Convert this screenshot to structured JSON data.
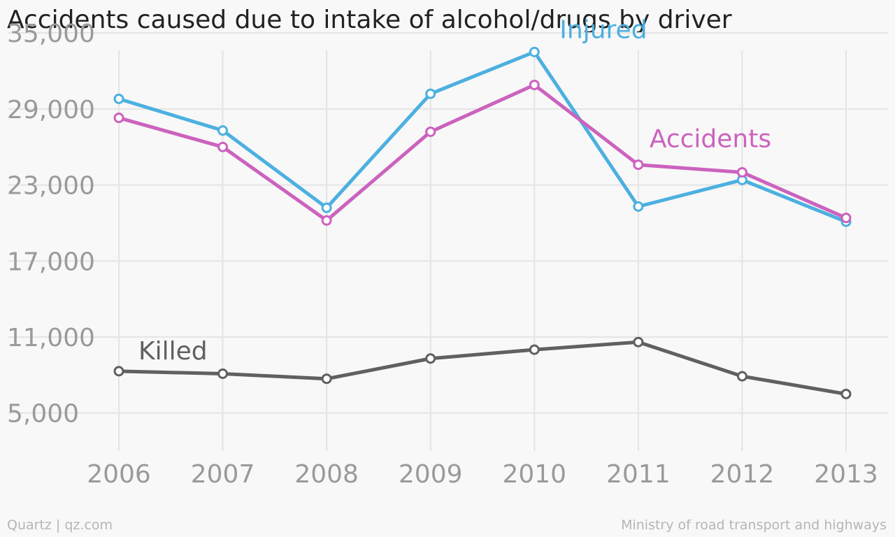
{
  "chart_data": {
    "type": "line",
    "title": "Accidents caused due to intake of alcohol/drugs by driver",
    "xlabel": "",
    "ylabel": "",
    "categories": [
      "2006",
      "2007",
      "2008",
      "2009",
      "2010",
      "2011",
      "2012",
      "2013"
    ],
    "ylim": [
      2000,
      36500
    ],
    "yticks": [
      5000,
      11000,
      17000,
      23000,
      29000,
      35000
    ],
    "ytick_labels": [
      "5,000",
      "11,000",
      "17,000",
      "23,000",
      "29,000",
      "35,000"
    ],
    "grid": true,
    "series": [
      {
        "name": "Injured",
        "color": "#4cb0e0",
        "values": [
          29800,
          27300,
          21200,
          30200,
          33500,
          21300,
          23400,
          20100
        ]
      },
      {
        "name": "Accidents",
        "color": "#cc62be",
        "values": [
          28300,
          26000,
          20200,
          27200,
          30900,
          24600,
          24000,
          20400
        ]
      },
      {
        "name": "Killed",
        "color": "#606060",
        "values": [
          8300,
          8100,
          7700,
          9300,
          10000,
          10600,
          7900,
          6500
        ]
      }
    ]
  },
  "footer": {
    "source_left": "Quartz | qz.com",
    "source_right": "Ministry of road transport and highways"
  }
}
